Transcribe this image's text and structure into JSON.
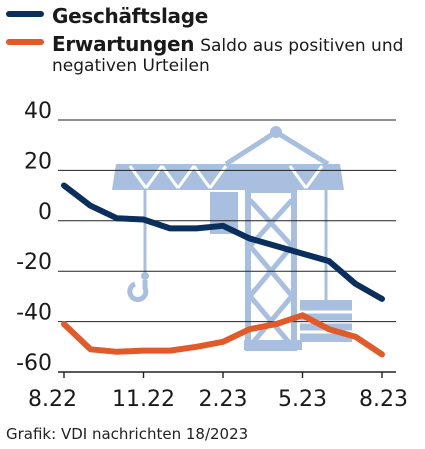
{
  "colors": {
    "series_navy": "#0a2f5c",
    "series_orange": "#e05a2a",
    "crane": "#a9bfe0",
    "gridline": "#222222",
    "text": "#1a1a1a"
  },
  "legend": {
    "items": [
      {
        "name": "Geschäftslage",
        "color": "#0a2f5c"
      },
      {
        "name": "Erwartungen",
        "color": "#e05a2a",
        "note": "Saldo aus positiven und",
        "note2": "negativen Urteilen"
      }
    ]
  },
  "source": "Grafik: VDI nachrichten 18/2023",
  "decoration": "crane-icon",
  "chart_data": {
    "type": "line",
    "title": "",
    "xlabel": "",
    "ylabel": "",
    "ylim": [
      -60,
      40
    ],
    "yticks": [
      40,
      20,
      0,
      -20,
      -40,
      -60
    ],
    "ytick_labels": [
      "40",
      "20",
      "0",
      "-20",
      "-40",
      "-60"
    ],
    "x_range": [
      "2022-08",
      "2023-08"
    ],
    "xtick_labels": [
      "8.22",
      "11.22",
      "2.23",
      "5.23",
      "8.23"
    ],
    "x": [
      "2022-08",
      "2022-09",
      "2022-10",
      "2022-11",
      "2022-12",
      "2023-01",
      "2023-02",
      "2023-03",
      "2023-04",
      "2023-05",
      "2023-06",
      "2023-07",
      "2023-08"
    ],
    "grid": true,
    "legend_position": "top-left",
    "series": [
      {
        "name": "Geschäftslage",
        "color": "#0a2f5c",
        "values": [
          14,
          6,
          1,
          0.5,
          -3,
          -3,
          -2,
          -7,
          -10,
          -13,
          -16,
          -25,
          -31
        ]
      },
      {
        "name": "Erwartungen",
        "color": "#e05a2a",
        "values": [
          -41,
          -51,
          -52,
          -51.5,
          -51.5,
          -50,
          -48,
          -43,
          -41,
          -37.5,
          -43,
          -46,
          -53
        ]
      }
    ]
  }
}
